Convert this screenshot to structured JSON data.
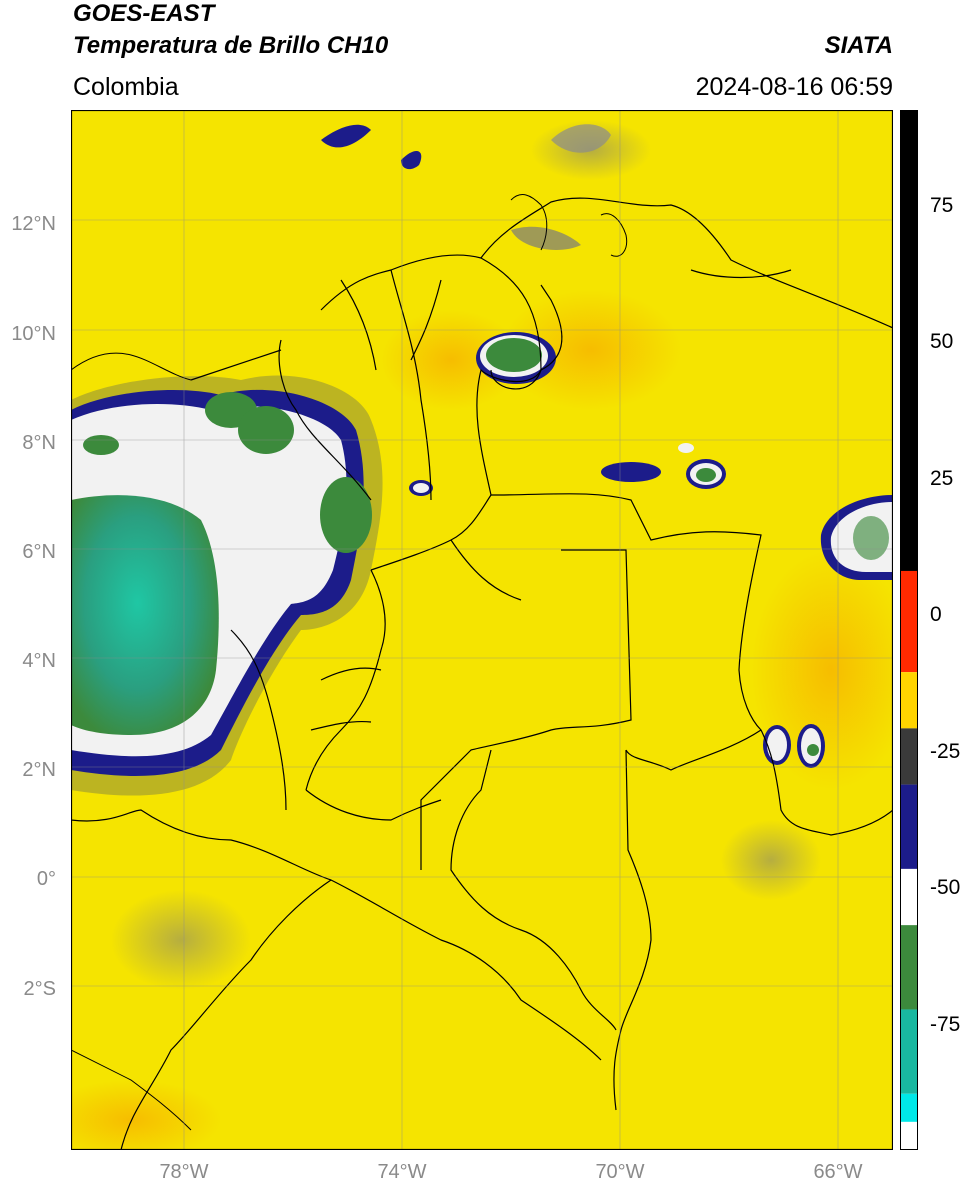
{
  "header": {
    "title_line1": "GOES-EAST",
    "title_line2": "Temperatura de Brillo CH10",
    "region": "Colombia",
    "organization": "SIATA",
    "timestamp": "2024-08-16 06:59"
  },
  "map": {
    "lat_labels": [
      "12°N",
      "10°N",
      "8°N",
      "6°N",
      "4°N",
      "2°N",
      "0°",
      "2°S"
    ],
    "lon_labels": [
      "78°W",
      "74°W",
      "70°W",
      "66°W"
    ],
    "background_color": "#f5e400",
    "cloud_colors": {
      "cold_core": "#1aa98c",
      "mid": "#3c8a3c",
      "edge_white": "#f4f4f4",
      "edge_blue": "#1c1c8a",
      "transition": "#8c8c3c"
    }
  },
  "colorbar": {
    "ticks": [
      "75",
      "50",
      "25",
      "0",
      "-25",
      "-50",
      "-75"
    ],
    "segments": [
      {
        "from": 90,
        "to": 8,
        "color": "#000000"
      },
      {
        "from": 8,
        "to": -10,
        "color": "#ff2a00"
      },
      {
        "from": -10,
        "to": -20,
        "color": "#ffd400"
      },
      {
        "from": -20,
        "to": -30,
        "color": "#3a3a3a"
      },
      {
        "from": -30,
        "to": -45,
        "color": "#1c1c8a"
      },
      {
        "from": -45,
        "to": -55,
        "color": "#ffffff"
      },
      {
        "from": -55,
        "to": -70,
        "color": "#3c8a3c"
      },
      {
        "from": -70,
        "to": -85,
        "color": "#19b8a0"
      },
      {
        "from": -85,
        "to": -90,
        "color": "#00e8e8"
      }
    ]
  }
}
